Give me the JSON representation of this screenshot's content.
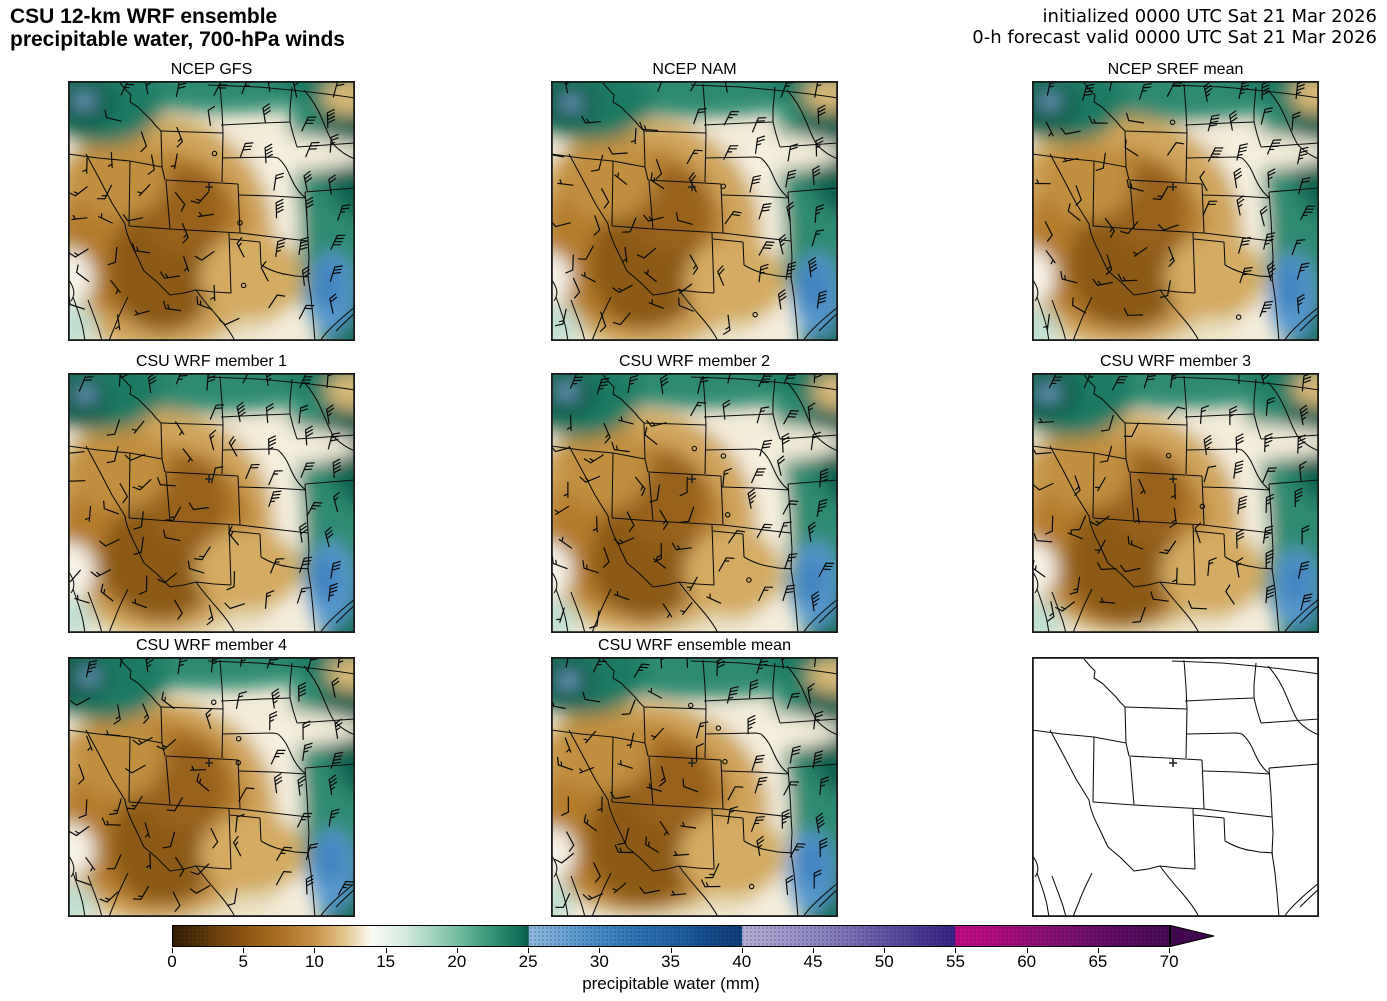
{
  "header": {
    "title_line1": "CSU 12-km WRF ensemble",
    "title_line2": "precipitable water, 700-hPa winds",
    "initialized": "initialized 0000 UTC Sat 21 Mar 2026",
    "valid": "0-h forecast valid 0000 UTC Sat 21 Mar 2026"
  },
  "panels": [
    {
      "title": "NCEP GFS",
      "slug": "ncep-gfs",
      "blank": false
    },
    {
      "title": "NCEP NAM",
      "slug": "ncep-nam",
      "blank": false
    },
    {
      "title": "NCEP SREF mean",
      "slug": "ncep-sref-mean",
      "blank": false
    },
    {
      "title": "CSU WRF member 1",
      "slug": "csu-wrf-member-1",
      "blank": false
    },
    {
      "title": "CSU WRF member 2",
      "slug": "csu-wrf-member-2",
      "blank": false
    },
    {
      "title": "CSU WRF member 3",
      "slug": "csu-wrf-member-3",
      "blank": false
    },
    {
      "title": "CSU WRF member 4",
      "slug": "csu-wrf-member-4",
      "blank": false
    },
    {
      "title": "CSU WRF ensemble mean",
      "slug": "csu-wrf-ensemble-mean",
      "blank": false
    },
    {
      "title": "",
      "slug": "blank-basemap",
      "blank": true
    }
  ],
  "map_overlay": {
    "boundaries": "US state borders",
    "marker": "cross marker in northern Colorado",
    "wind_symbols": "700-hPa wind barbs (calm shown as circles)"
  },
  "colorbar": {
    "label": "precipitable water (mm)",
    "ticks": [
      0,
      5,
      10,
      15,
      20,
      25,
      30,
      35,
      40,
      45,
      50,
      55,
      60,
      65,
      70
    ],
    "extend": "max-arrow",
    "arrow_color": "#42084f",
    "stops": [
      [
        0,
        "#331c05"
      ],
      [
        2.5,
        "#613a0c"
      ],
      [
        5,
        "#8a5312"
      ],
      [
        7.5,
        "#a96f22"
      ],
      [
        10,
        "#c79349"
      ],
      [
        12,
        "#e2c389"
      ],
      [
        13.5,
        "#f6edd8"
      ],
      [
        14,
        "#fbfaf4"
      ],
      [
        15,
        "#e8f3ec"
      ],
      [
        16.5,
        "#cfe8dc"
      ],
      [
        18,
        "#a7d6c2"
      ],
      [
        20,
        "#74bda1"
      ],
      [
        21.5,
        "#4ba385"
      ],
      [
        23,
        "#2a8a6e"
      ],
      [
        24.5,
        "#0f6b55"
      ],
      [
        25,
        "#0a5a48"
      ],
      [
        25.06,
        "#8fb8dd"
      ],
      [
        27.5,
        "#6aa3d4"
      ],
      [
        30,
        "#4689c4"
      ],
      [
        32.5,
        "#2f74b4"
      ],
      [
        35,
        "#2364a5"
      ],
      [
        37.5,
        "#174f90"
      ],
      [
        40,
        "#0f3c77"
      ],
      [
        40.06,
        "#b3aed8"
      ],
      [
        42.5,
        "#a29cce"
      ],
      [
        45,
        "#908ac3"
      ],
      [
        47.5,
        "#7b72b5"
      ],
      [
        50,
        "#6154a5"
      ],
      [
        52.5,
        "#4b3a93"
      ],
      [
        55,
        "#3a2384"
      ],
      [
        55.06,
        "#c20b86"
      ],
      [
        57.5,
        "#b10d81"
      ],
      [
        60,
        "#9a0f7a"
      ],
      [
        62.5,
        "#821071"
      ],
      [
        65,
        "#6b0f68"
      ],
      [
        67.5,
        "#560c5e"
      ],
      [
        70,
        "#450a55"
      ]
    ]
  },
  "chart_data": {
    "type": "heatmap",
    "title": "CSU 12-km WRF ensemble precipitable water, 700-hPa winds",
    "annotations_right": [
      "initialized 0000 UTC Sat 21 Mar 2026",
      "0-h forecast valid 0000 UTC Sat 21 Mar 2026"
    ],
    "panels": [
      "NCEP GFS",
      "NCEP NAM",
      "NCEP SREF mean",
      "CSU WRF member 1",
      "CSU WRF member 2",
      "CSU WRF member 3",
      "CSU WRF member 4",
      "CSU WRF ensemble mean"
    ],
    "grid": "3x3 subplots; bottom-right subplot is an empty basemap with state borders and a cross marker in northern Colorado",
    "domain": "Western/central CONUS: roughly California to Iowa, Canadian border to northern Mexico",
    "colorbar": {
      "label": "precipitable water (mm)",
      "units": "mm",
      "ticks": [
        0,
        5,
        10,
        15,
        20,
        25,
        30,
        35,
        40,
        45,
        50,
        55,
        60,
        65,
        70
      ],
      "extend_max": true
    },
    "field_estimates_mm": {
      "pacific_northwest_corner": "20-28 (local maximum, small >25 blue patch)",
      "northern_plains_top_band": "14-24",
      "eastern_plains_band": "15-25",
      "gulf_coast_lower_right": "25-32 (blue patch over east Texas)",
      "interior_southwest_core": "2-6 (Four Corners / NM-AZ brown minimum)",
      "intermountain_west": "4-10",
      "transition_band": "12-14 (cream/white)"
    },
    "winds": "Strong north-northeasterly 700-hPa flow (15-35 kt barbs) over the moist northern and eastern band; light, variable flow with some calm circles over the dry interior Southwest",
    "agreement": "All eight model panels show the same pattern: dry brown interior Southwest, moist teal band along the north and east, small high-PW blue patches in the far northwest corner and near the Gulf coast"
  }
}
